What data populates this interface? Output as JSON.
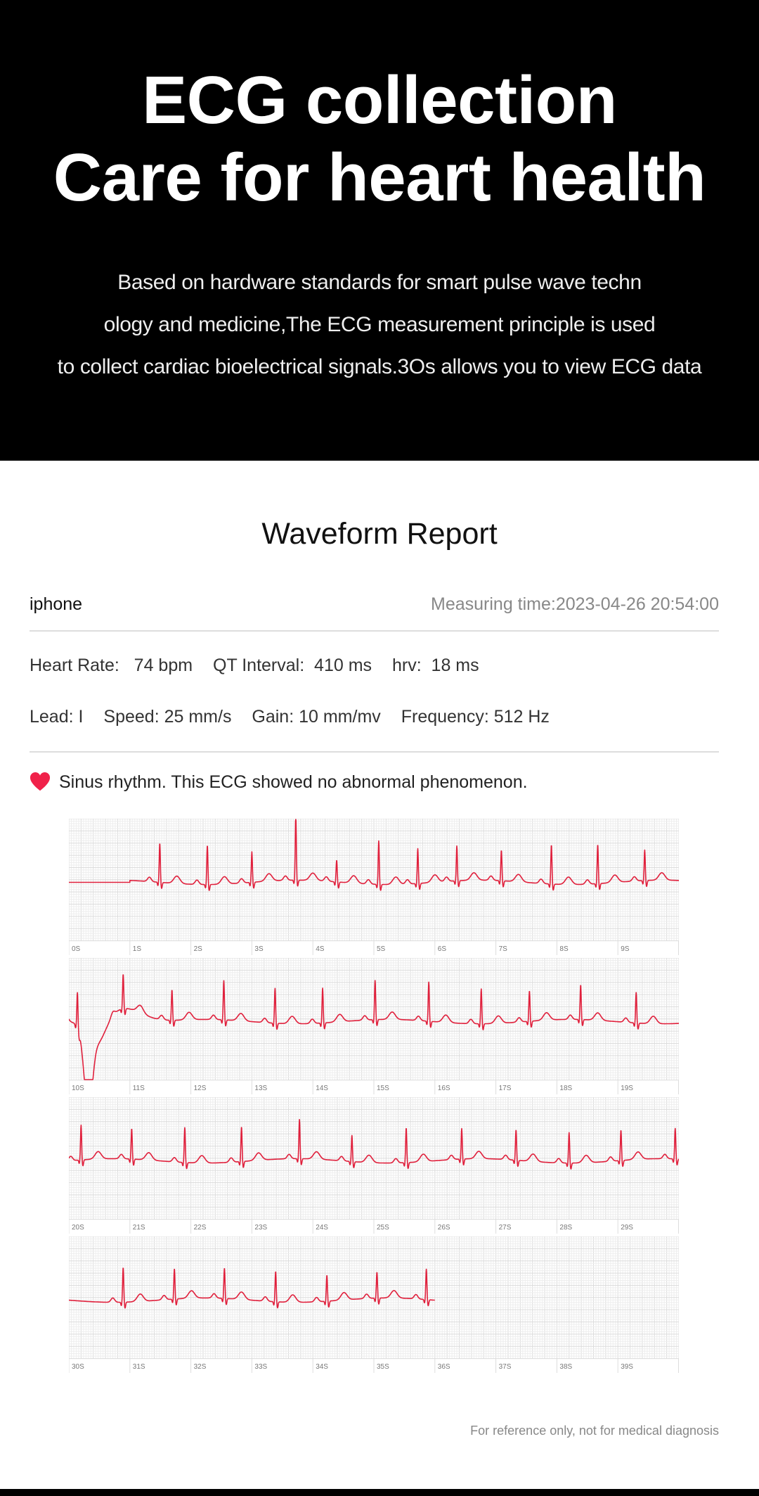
{
  "hero": {
    "title_lines": [
      "ECG collection",
      "Care for heart health"
    ],
    "subtitle_lines": [
      "Based on hardware standards for smart pulse wave techn",
      "ology and medicine,The ECG measurement principle is used",
      "to collect cardiac bioelectrical signals.3Os allows you to view ECG data"
    ]
  },
  "report": {
    "title": "Waveform Report",
    "device": "iphone",
    "measuring_time": "Measuring time:2023-04-26 20:54:00",
    "stats": [
      "Heart Rate:   74 bpm",
      "QT Interval:  410 ms",
      "hrv:  18 ms"
    ],
    "params": [
      "Lead: I",
      "Speed: 25 mm/s",
      "Gain: 10 mm/mv",
      "Frequency: 512 Hz"
    ],
    "result_icon": "heart-icon",
    "result_text": "Sinus rhythm. This ECG showed no abnormal phenomenon.",
    "footer": "For reference only, not for medical diagnosis"
  },
  "colors": {
    "trace": "#e0203c",
    "grid_minor": "#eeeeee",
    "grid_major": "#dcdcdc",
    "heart": "#f0224a"
  },
  "chart_data": {
    "type": "line",
    "title": "",
    "x_unit": "s",
    "strips": [
      {
        "xlim": [
          0,
          10
        ],
        "tick_labels": [
          "0S",
          "1S",
          "2S",
          "3S",
          "4S",
          "5S",
          "6S",
          "7S",
          "8S",
          "9S"
        ],
        "signal_start": 1.0,
        "signal_end": 10,
        "r_peaks": [
          1.49,
          2.27,
          3.0,
          3.72,
          4.39,
          5.08,
          5.72,
          6.36,
          7.09,
          7.91,
          8.67,
          9.44
        ],
        "r_amplitudes": [
          0.9,
          0.9,
          0.7,
          1.5,
          0.5,
          1.0,
          0.8,
          0.8,
          0.7,
          0.9,
          0.9,
          0.7
        ]
      },
      {
        "xlim": [
          10,
          20
        ],
        "tick_labels": [
          "10S",
          "11S",
          "12S",
          "13S",
          "14S",
          "15S",
          "16S",
          "17S",
          "18S",
          "19S"
        ],
        "signal_start": 10,
        "signal_end": 20,
        "r_peaks": [
          10.14,
          10.89,
          11.69,
          12.54,
          13.38,
          14.16,
          15.02,
          15.9,
          16.76,
          17.55,
          18.39,
          19.3
        ],
        "r_amplitudes": [
          0.8,
          0.8,
          0.7,
          0.9,
          0.8,
          0.8,
          0.9,
          0.9,
          0.8,
          0.7,
          0.8,
          0.7
        ]
      },
      {
        "xlim": [
          20,
          30
        ],
        "tick_labels": [
          "20S",
          "21S",
          "22S",
          "23S",
          "24S",
          "25S",
          "26S",
          "27S",
          "28S",
          "29S"
        ],
        "signal_start": 20,
        "signal_end": 30,
        "r_peaks": [
          20.2,
          21.03,
          21.9,
          22.83,
          23.78,
          24.64,
          25.53,
          26.44,
          27.33,
          28.2,
          29.05,
          29.94
        ],
        "r_amplitudes": [
          0.8,
          0.7,
          0.8,
          0.8,
          0.9,
          0.6,
          0.8,
          0.7,
          0.7,
          0.7,
          0.7,
          0.7
        ]
      },
      {
        "xlim": [
          30,
          40
        ],
        "tick_labels": [
          "30S",
          "31S",
          "32S",
          "33S",
          "34S",
          "35S",
          "36S",
          "37S",
          "38S",
          "39S"
        ],
        "signal_start": 30,
        "signal_end": 36.0,
        "r_peaks": [
          30.89,
          31.73,
          32.55,
          33.39,
          34.23,
          35.05,
          35.86
        ],
        "r_amplitudes": [
          0.8,
          0.7,
          0.7,
          0.7,
          0.6,
          0.6,
          0.7
        ]
      }
    ]
  }
}
